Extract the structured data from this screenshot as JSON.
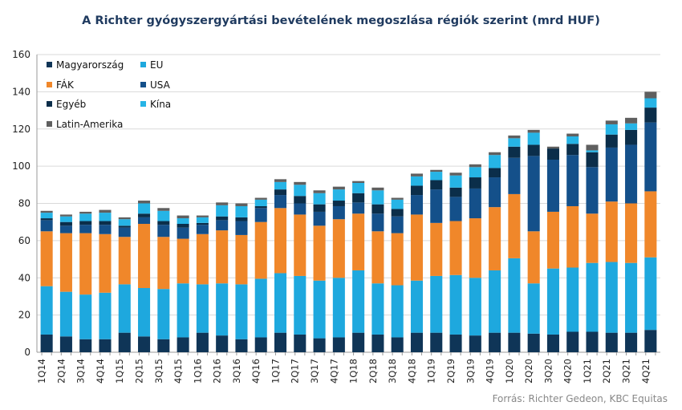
{
  "chart_data": {
    "type": "bar",
    "stacked": true,
    "title": "A Richter gyógyszergyártási bevételének megoszlása régiók szerint (mrd HUF)",
    "xlabel": "",
    "ylabel": "",
    "ylim": [
      0,
      160
    ],
    "yticks": [
      0,
      20,
      40,
      60,
      80,
      100,
      120,
      140,
      160
    ],
    "grid": true,
    "legend_position": "top-left",
    "categories": [
      "1Q14",
      "2Q14",
      "3Q14",
      "4Q14",
      "1Q15",
      "2Q15",
      "3Q15",
      "4Q15",
      "1Q16",
      "2Q16",
      "3Q16",
      "4Q16",
      "1Q17",
      "2Q17",
      "3Q17",
      "4Q17",
      "1Q18",
      "2Q18",
      "3Q18",
      "4Q18",
      "1Q19",
      "2Q19",
      "3Q19",
      "4Q19",
      "1Q20",
      "2Q20",
      "3Q20",
      "4Q20",
      "1Q21",
      "2Q21",
      "3Q21",
      "4Q21"
    ],
    "x_tick_labels": [
      "1Q14",
      "",
      "2Q14",
      "",
      "3Q14",
      "",
      "4Q14",
      "",
      "1Q15",
      "",
      "2Q15",
      "",
      "3Q15",
      "",
      "4Q15",
      "",
      "1Q16",
      "",
      "2Q16",
      "",
      "3Q16",
      "",
      "4Q16",
      "",
      "1Q17",
      "",
      "2Q17",
      "",
      "3Q17",
      "",
      "4Q17",
      "",
      "1Q18",
      "",
      "2Q18",
      "",
      "3Q18",
      "",
      "4Q18",
      "",
      "1Q19",
      "",
      "2Q19",
      "",
      "3Q19",
      "",
      "4Q19",
      "",
      "1Q20",
      "",
      "2Q20",
      "",
      "3Q20",
      "",
      "4Q20",
      "",
      "1Q21",
      "",
      "2Q21",
      "",
      "3Q21",
      "",
      "4Q21",
      ""
    ],
    "series": [
      {
        "name": "Magyarország",
        "color": "#0f3557",
        "values": [
          9.5,
          8.5,
          7,
          7,
          10.5,
          8.5,
          7,
          8,
          10.5,
          9,
          7,
          8,
          10.5,
          9.5,
          7.5,
          8,
          10.5,
          9.5,
          8,
          10.5,
          10.5,
          9.5,
          9,
          10.5,
          10.5,
          10,
          9.5,
          11,
          11,
          10.5,
          10.5,
          12
        ]
      },
      {
        "name": "EU",
        "color": "#1ea8de",
        "values": [
          26,
          24,
          24,
          25,
          26,
          26,
          27,
          29,
          26,
          28,
          29.5,
          31.5,
          32,
          31.5,
          31,
          32,
          33.5,
          27.5,
          28,
          28,
          30.5,
          32,
          31,
          33.5,
          40,
          27,
          35.5,
          34.5,
          37,
          38,
          37.5,
          39
        ]
      },
      {
        "name": "FÁK",
        "color": "#f0872a",
        "values": [
          29.5,
          31.5,
          33,
          31.5,
          25.5,
          34.5,
          28,
          24,
          27,
          28.5,
          26.5,
          30.5,
          35,
          33,
          29.5,
          31.5,
          30.5,
          28,
          28,
          35.5,
          28.5,
          29,
          32,
          34,
          34.5,
          28,
          30.5,
          33,
          26.5,
          32.5,
          32,
          35.5
        ]
      },
      {
        "name": "USA",
        "color": "#14508a",
        "values": [
          6,
          4,
          4.5,
          5,
          5,
          3.5,
          6.5,
          6,
          5,
          5.5,
          7.5,
          7.5,
          7,
          6,
          7.5,
          7,
          6,
          9.5,
          9,
          10.5,
          18,
          13,
          16,
          16,
          19.5,
          40.5,
          28,
          27.5,
          25,
          29,
          31.5,
          37
        ]
      },
      {
        "name": "Egyéb",
        "color": "#0b2e4a",
        "values": [
          1,
          2,
          2,
          2,
          1,
          2,
          2,
          2,
          1,
          2,
          2,
          1,
          3,
          4,
          4,
          3,
          5,
          5,
          4,
          5,
          5,
          5,
          6,
          5,
          6,
          6,
          6,
          6,
          8,
          7,
          8,
          8
        ]
      },
      {
        "name": "Kína",
        "color": "#26b4e6",
        "values": [
          3,
          3,
          4,
          4.5,
          3.5,
          5.5,
          5.5,
          3,
          3,
          6,
          6,
          3.5,
          4,
          6,
          6,
          6,
          5.5,
          7.5,
          5,
          5,
          4.5,
          6.5,
          5.5,
          7,
          4.5,
          6.5,
          0,
          4,
          1,
          5.5,
          3.5,
          5
        ]
      },
      {
        "name": "Latin-Amerika",
        "color": "#5f5f5f",
        "values": [
          1,
          1,
          1,
          1.5,
          1,
          1.5,
          1.5,
          1.5,
          1,
          1.5,
          1.5,
          1,
          1.5,
          1.5,
          1.5,
          1.5,
          1,
          1.5,
          1,
          1.5,
          1,
          1.5,
          1.5,
          1.5,
          1.5,
          1.5,
          1,
          1.5,
          3,
          2,
          3,
          3.5
        ]
      }
    ]
  },
  "source_text": "Forrás: Richter Gedeon, KBC Equitas"
}
